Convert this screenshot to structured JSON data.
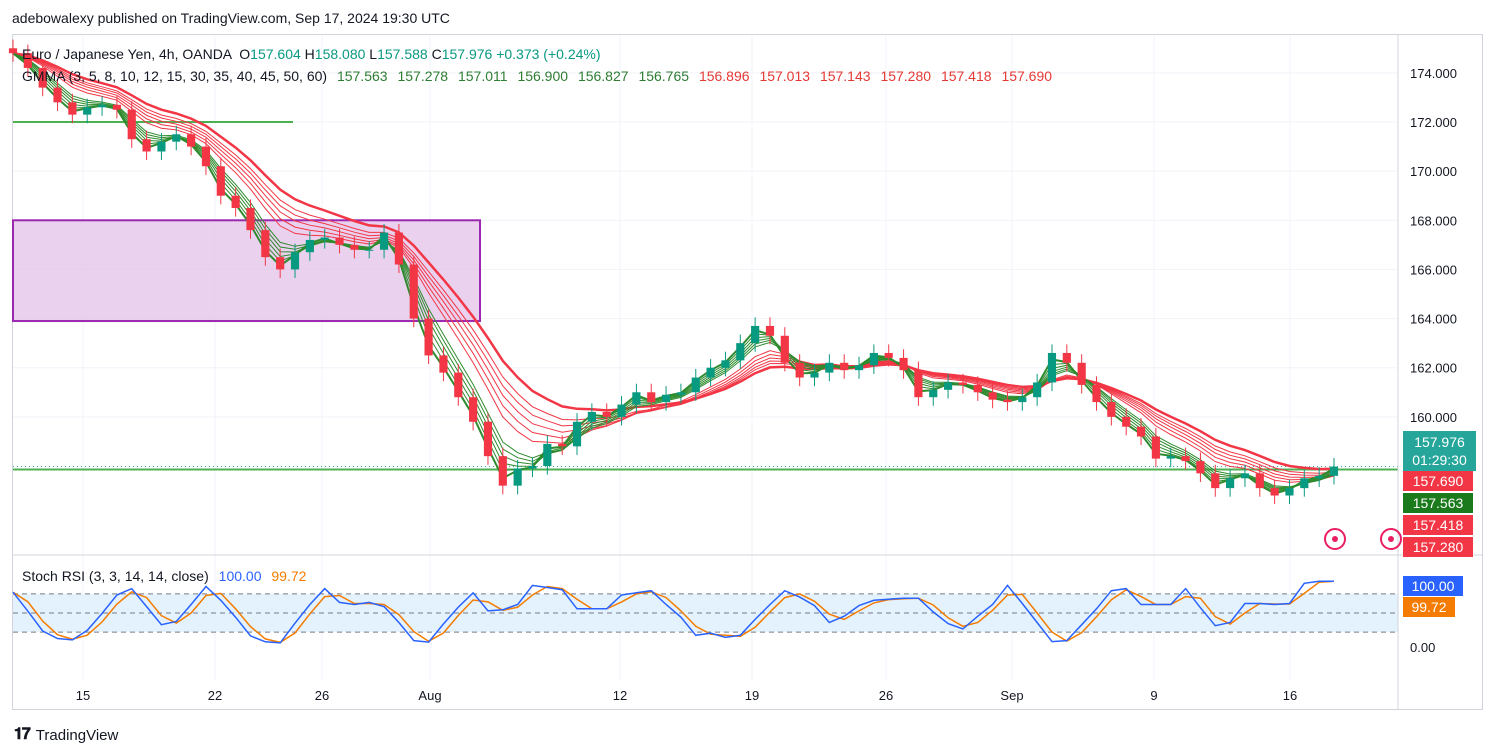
{
  "header": {
    "publisher_line": "adebowalexy published on TradingView.com, Sep 17, 2024 19:30 UTC"
  },
  "footer": {
    "brand": "TradingView",
    "logo_icon": "tradingview-logo-icon"
  },
  "legend": {
    "symbol": "Euro / Japanese Yen, 4h, OANDA",
    "o_label": "O",
    "o": "157.604",
    "h_label": "H",
    "h": "158.080",
    "l_label": "L",
    "l": "157.588",
    "c_label": "C",
    "c": "157.976",
    "change": "+0.373 (+0.24%)",
    "gmma_label": "GMMA (3, 5, 8, 10, 12, 15, 30, 35, 40, 45, 50, 60)",
    "gmma_short": [
      "157.563",
      "157.278",
      "157.011",
      "156.900",
      "156.827",
      "156.765"
    ],
    "gmma_long": [
      "156.896",
      "157.013",
      "157.143",
      "157.280",
      "157.418",
      "157.690"
    ],
    "rsi_label": "Stoch RSI (3, 3, 14, 14, close)",
    "rsi_k": "100.00",
    "rsi_d": "99.72"
  },
  "price_badges": {
    "last": "157.976",
    "countdown": "01:29:30",
    "b1": "157.690",
    "b2": "157.563",
    "b3": "157.418",
    "b4": "157.280"
  },
  "rsi_badges": {
    "k": "100.00",
    "d": "99.72",
    "zero": "0.00"
  },
  "colors": {
    "up": "#089981",
    "down": "#f23645",
    "short_ma": "#2e8b2e",
    "long_ma": "#f23645",
    "rsi_k": "#2962ff",
    "rsi_d": "#f57c00",
    "zone": "#e1bee7",
    "zone_border": "#9c27b0",
    "rsi_band": "#e3f2fd",
    "last_badge": "#26a69a"
  },
  "chart_data": {
    "type": "candlestick",
    "symbol": "EURJPY",
    "timeframe": "4h",
    "ylim": [
      154.5,
      175.5
    ],
    "y_ticks": [
      "174.000",
      "172.000",
      "170.000",
      "168.000",
      "166.000",
      "164.000",
      "162.000",
      "160.000"
    ],
    "x_ticks": [
      "15",
      "22",
      "26",
      "Aug",
      "12",
      "19",
      "26",
      "Sep",
      "9",
      "16"
    ],
    "close_series": [
      174.8,
      174.2,
      173.4,
      172.8,
      172.3,
      172.6,
      172.7,
      172.5,
      171.3,
      170.8,
      171.2,
      171.5,
      171.0,
      170.2,
      169.0,
      168.5,
      167.6,
      166.5,
      166.0,
      166.7,
      167.2,
      167.3,
      167.0,
      166.8,
      166.8,
      167.5,
      166.2,
      164.0,
      162.5,
      161.8,
      160.8,
      159.8,
      158.4,
      157.2,
      157.9,
      158.0,
      158.9,
      158.8,
      159.8,
      160.2,
      160.0,
      160.5,
      161.0,
      160.6,
      160.9,
      161.0,
      161.6,
      162.0,
      162.3,
      163.0,
      163.7,
      163.3,
      162.2,
      161.6,
      161.8,
      162.2,
      161.9,
      162.1,
      162.6,
      162.4,
      161.9,
      160.8,
      161.1,
      161.4,
      161.3,
      161.0,
      160.7,
      160.6,
      160.8,
      161.4,
      162.6,
      162.2,
      161.3,
      160.6,
      160.0,
      159.6,
      159.2,
      158.3,
      158.4,
      158.2,
      157.7,
      157.1,
      157.5,
      157.7,
      157.1,
      156.8,
      157.1,
      157.5,
      157.6,
      157.976
    ],
    "horizontal_lines": [
      172.0,
      158.1
    ],
    "zone": {
      "top": 168.0,
      "bottom": 163.9
    },
    "stoch_rsi": {
      "ylim": [
        -5,
        105
      ],
      "k": [
        99,
        50,
        10,
        5,
        15,
        3,
        50,
        95,
        90,
        80,
        10,
        5,
        95,
        90,
        90,
        30,
        10,
        2,
        2,
        5,
        95,
        90,
        80,
        30,
        80,
        90,
        10,
        5,
        5,
        3,
        90,
        85,
        70,
        5,
        90,
        95,
        95,
        80,
        85,
        5,
        80,
        85,
        70,
        90,
        95,
        5,
        30,
        10,
        15,
        10,
        20,
        90,
        80,
        85,
        60,
        40,
        5,
        90,
        90,
        30,
        95,
        95,
        30,
        30,
        40,
        5,
        90,
        95,
        95,
        5,
        5,
        5,
        10,
        80,
        80,
        95,
        90,
        5,
        95,
        90,
        80,
        5,
        5,
        95,
        95,
        5,
        90,
        100,
        100,
        100
      ],
      "d_value": 99.72
    }
  }
}
